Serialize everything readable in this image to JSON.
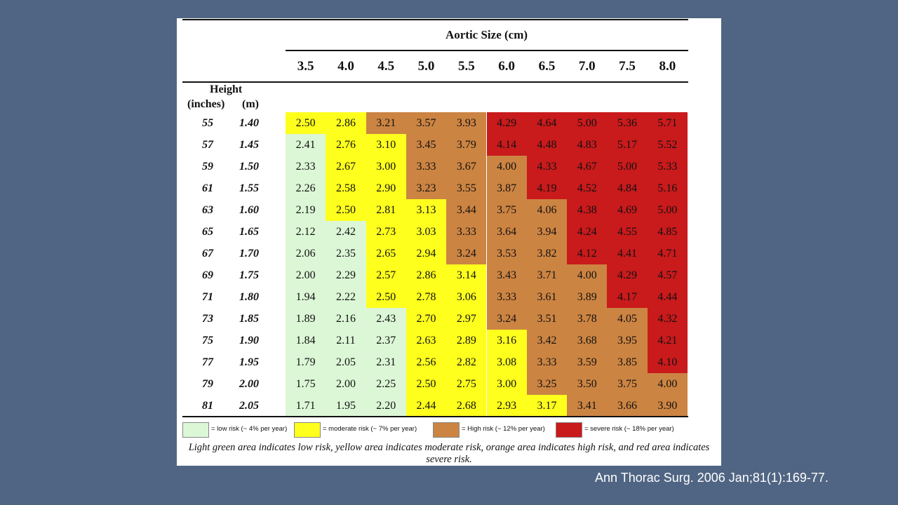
{
  "table": {
    "title": "Aortic Size (cm)",
    "height_label": "Height",
    "inches_label": "(inches)",
    "m_label": "(m)",
    "columns": [
      "3.5",
      "4.0",
      "4.5",
      "5.0",
      "5.5",
      "6.0",
      "6.5",
      "7.0",
      "7.5",
      "8.0"
    ],
    "rows": [
      {
        "inches": "55",
        "m": "1.40",
        "values": [
          "2.50",
          "2.86",
          "3.21",
          "3.57",
          "3.93",
          "4.29",
          "4.64",
          "5.00",
          "5.36",
          "5.71"
        ],
        "risk": [
          "mod",
          "mod",
          "high",
          "high",
          "high",
          "sev",
          "sev",
          "sev",
          "sev",
          "sev"
        ]
      },
      {
        "inches": "57",
        "m": "1.45",
        "values": [
          "2.41",
          "2.76",
          "3.10",
          "3.45",
          "3.79",
          "4.14",
          "4.48",
          "4.83",
          "5.17",
          "5.52"
        ],
        "risk": [
          "low",
          "mod",
          "mod",
          "high",
          "high",
          "sev",
          "sev",
          "sev",
          "sev",
          "sev"
        ]
      },
      {
        "inches": "59",
        "m": "1.50",
        "values": [
          "2.33",
          "2.67",
          "3.00",
          "3.33",
          "3.67",
          "4.00",
          "4.33",
          "4.67",
          "5.00",
          "5.33"
        ],
        "risk": [
          "low",
          "mod",
          "mod",
          "high",
          "high",
          "high",
          "sev",
          "sev",
          "sev",
          "sev"
        ]
      },
      {
        "inches": "61",
        "m": "1.55",
        "values": [
          "2.26",
          "2.58",
          "2.90",
          "3.23",
          "3.55",
          "3.87",
          "4.19",
          "4.52",
          "4.84",
          "5.16"
        ],
        "risk": [
          "low",
          "mod",
          "mod",
          "high",
          "high",
          "high",
          "sev",
          "sev",
          "sev",
          "sev"
        ]
      },
      {
        "inches": "63",
        "m": "1.60",
        "values": [
          "2.19",
          "2.50",
          "2.81",
          "3.13",
          "3.44",
          "3.75",
          "4.06",
          "4.38",
          "4.69",
          "5.00"
        ],
        "risk": [
          "low",
          "mod",
          "mod",
          "mod",
          "high",
          "high",
          "high",
          "sev",
          "sev",
          "sev"
        ]
      },
      {
        "inches": "65",
        "m": "1.65",
        "values": [
          "2.12",
          "2.42",
          "2.73",
          "3.03",
          "3.33",
          "3.64",
          "3.94",
          "4.24",
          "4.55",
          "4.85"
        ],
        "risk": [
          "low",
          "low",
          "mod",
          "mod",
          "high",
          "high",
          "high",
          "sev",
          "sev",
          "sev"
        ]
      },
      {
        "inches": "67",
        "m": "1.70",
        "values": [
          "2.06",
          "2.35",
          "2.65",
          "2.94",
          "3.24",
          "3.53",
          "3.82",
          "4.12",
          "4.41",
          "4.71"
        ],
        "risk": [
          "low",
          "low",
          "mod",
          "mod",
          "high",
          "high",
          "high",
          "sev",
          "sev",
          "sev"
        ]
      },
      {
        "inches": "69",
        "m": "1.75",
        "values": [
          "2.00",
          "2.29",
          "2.57",
          "2.86",
          "3.14",
          "3.43",
          "3.71",
          "4.00",
          "4.29",
          "4.57"
        ],
        "risk": [
          "low",
          "low",
          "mod",
          "mod",
          "mod",
          "high",
          "high",
          "high",
          "sev",
          "sev"
        ]
      },
      {
        "inches": "71",
        "m": "1.80",
        "values": [
          "1.94",
          "2.22",
          "2.50",
          "2.78",
          "3.06",
          "3.33",
          "3.61",
          "3.89",
          "4.17",
          "4.44"
        ],
        "risk": [
          "low",
          "low",
          "mod",
          "mod",
          "mod",
          "high",
          "high",
          "high",
          "sev",
          "sev"
        ]
      },
      {
        "inches": "73",
        "m": "1.85",
        "values": [
          "1.89",
          "2.16",
          "2.43",
          "2.70",
          "2.97",
          "3.24",
          "3.51",
          "3.78",
          "4.05",
          "4.32"
        ],
        "risk": [
          "low",
          "low",
          "low",
          "mod",
          "mod",
          "high",
          "high",
          "high",
          "high",
          "sev"
        ]
      },
      {
        "inches": "75",
        "m": "1.90",
        "values": [
          "1.84",
          "2.11",
          "2.37",
          "2.63",
          "2.89",
          "3.16",
          "3.42",
          "3.68",
          "3.95",
          "4.21"
        ],
        "risk": [
          "low",
          "low",
          "low",
          "mod",
          "mod",
          "mod",
          "high",
          "high",
          "high",
          "sev"
        ]
      },
      {
        "inches": "77",
        "m": "1.95",
        "values": [
          "1.79",
          "2.05",
          "2.31",
          "2.56",
          "2.82",
          "3.08",
          "3.33",
          "3.59",
          "3.85",
          "4.10"
        ],
        "risk": [
          "low",
          "low",
          "low",
          "mod",
          "mod",
          "mod",
          "high",
          "high",
          "high",
          "sev"
        ]
      },
      {
        "inches": "79",
        "m": "2.00",
        "values": [
          "1.75",
          "2.00",
          "2.25",
          "2.50",
          "2.75",
          "3.00",
          "3.25",
          "3.50",
          "3.75",
          "4.00"
        ],
        "risk": [
          "low",
          "low",
          "low",
          "mod",
          "mod",
          "mod",
          "high",
          "high",
          "high",
          "high"
        ]
      },
      {
        "inches": "81",
        "m": "2.05",
        "values": [
          "1.71",
          "1.95",
          "2.20",
          "2.44",
          "2.68",
          "2.93",
          "3.17",
          "3.41",
          "3.66",
          "3.90"
        ],
        "risk": [
          "low",
          "low",
          "low",
          "mod",
          "mod",
          "mod",
          "mod",
          "high",
          "high",
          "high"
        ]
      }
    ]
  },
  "legend": [
    {
      "key": "low",
      "label": "= low risk (~ 4% per year)",
      "color": "#dcf7d6"
    },
    {
      "key": "mod",
      "label": "= moderate risk (~ 7% per year)",
      "color": "#ffff1e"
    },
    {
      "key": "high",
      "label": "= High risk (~ 12% per year)",
      "color": "#cc8442"
    },
    {
      "key": "sev",
      "label": "= severe risk (~ 18% per year)",
      "color": "#c91a1c"
    }
  ],
  "caption": "Light green area indicates low risk, yellow area indicates moderate risk, orange area indicates high risk, and red area indicates severe risk.",
  "citation": "Ann Thorac Surg. 2006 Jan;81(1):169-77."
}
